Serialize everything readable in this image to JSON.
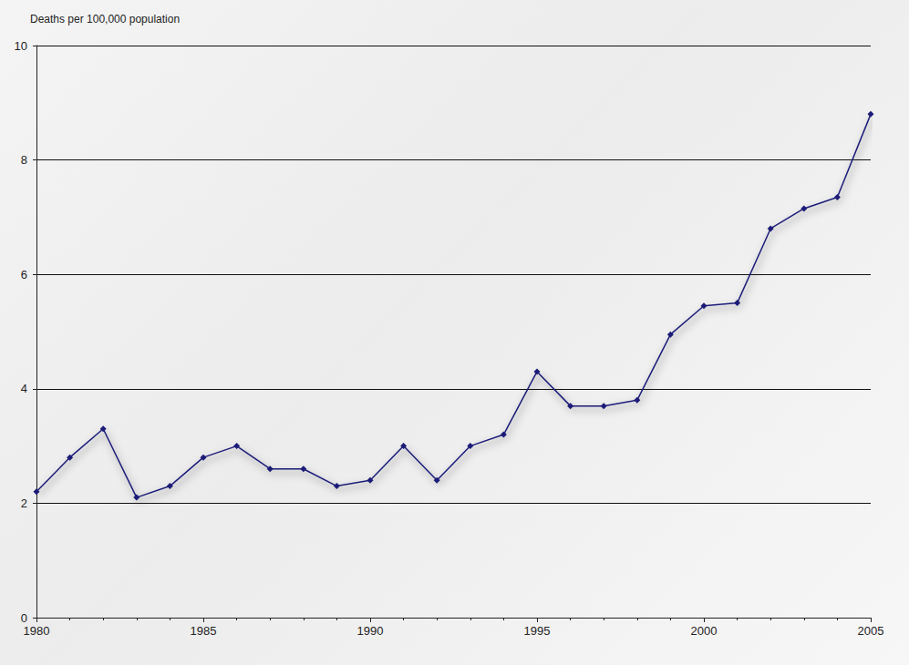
{
  "chart_data": {
    "type": "line",
    "ylabel": "Deaths per 100,000 population",
    "x": [
      1980,
      1981,
      1982,
      1983,
      1984,
      1985,
      1986,
      1987,
      1988,
      1989,
      1990,
      1991,
      1992,
      1993,
      1994,
      1995,
      1996,
      1997,
      1998,
      1999,
      2000,
      2001,
      2002,
      2003,
      2004,
      2005
    ],
    "values": [
      2.2,
      2.8,
      3.3,
      2.1,
      2.3,
      2.8,
      3.0,
      2.6,
      2.6,
      2.3,
      2.4,
      3.0,
      2.4,
      3.0,
      3.2,
      4.3,
      3.7,
      3.7,
      3.8,
      4.95,
      5.45,
      5.5,
      6.8,
      7.15,
      7.35,
      8.8
    ],
    "color": "#1c1c78",
    "marker": "diamond",
    "xlim": [
      1980,
      2005
    ],
    "xticks": [
      1980,
      1985,
      1990,
      1995,
      2000,
      2005
    ],
    "ylim": [
      0,
      10
    ],
    "yticks": [
      0,
      2,
      4,
      6,
      8,
      10
    ],
    "grid": true
  }
}
